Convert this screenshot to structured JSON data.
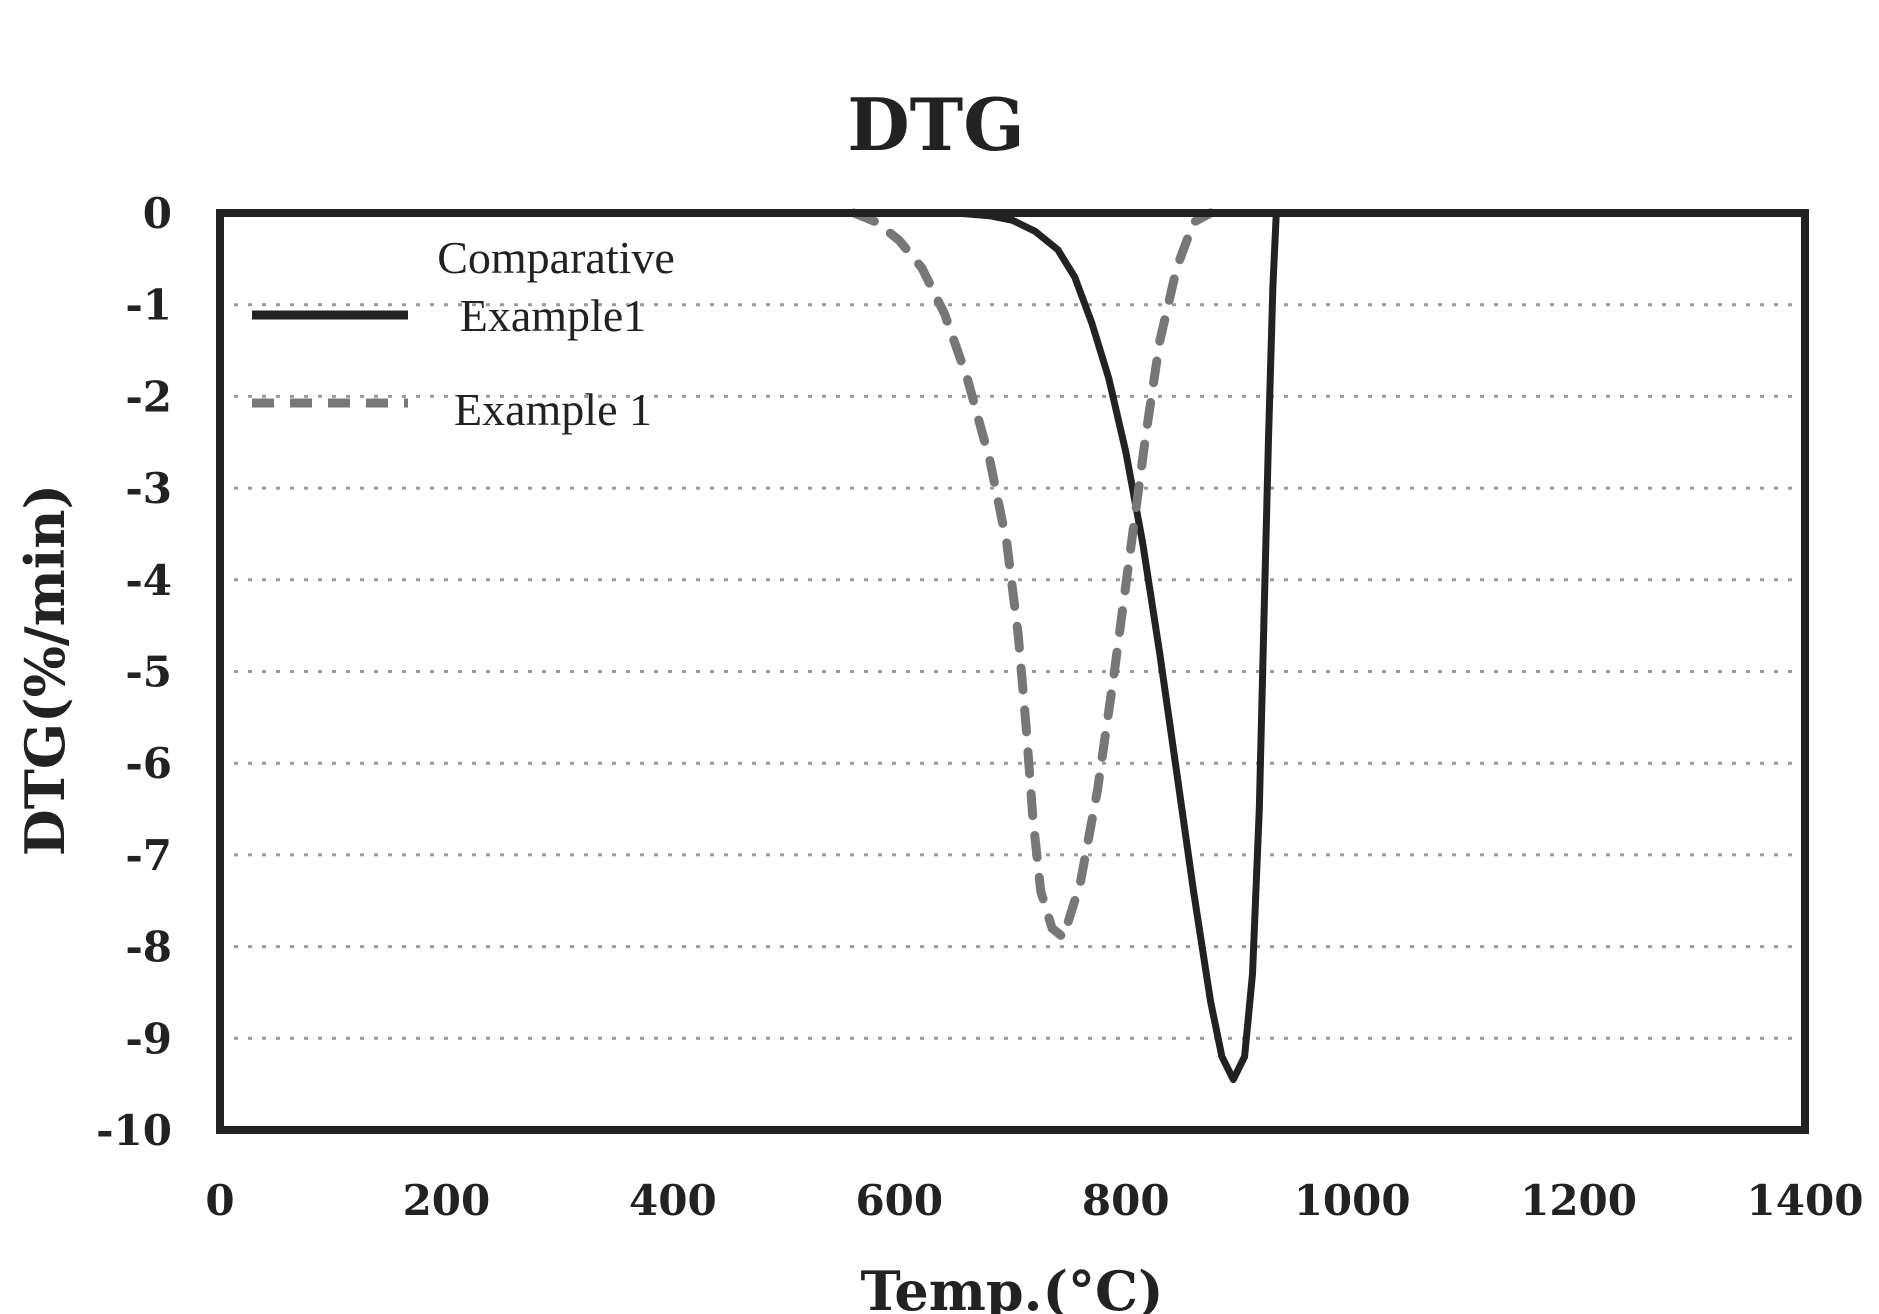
{
  "chart_data": {
    "type": "line",
    "title": "DTG",
    "xlabel": "Temp.(°C)",
    "ylabel": "DTG(%/min)",
    "xlim": [
      0,
      1400
    ],
    "ylim": [
      -10,
      0
    ],
    "xticks": [
      0,
      200,
      400,
      600,
      800,
      1000,
      1200,
      1400
    ],
    "yticks": [
      0,
      -1,
      -2,
      -3,
      -4,
      -5,
      -6,
      -7,
      -8,
      -9,
      -10
    ],
    "xtick_labels": [
      "0",
      "200",
      "400",
      "600",
      "800",
      "1000",
      "1200",
      "1400"
    ],
    "ytick_labels": [
      "0",
      "-1",
      "-2",
      "-3",
      "-4",
      "-5",
      "-6",
      "-7",
      "-8",
      "-9",
      "-10"
    ],
    "grid": "horizontal dotted",
    "legend": {
      "placement": "top-left",
      "entries": [
        {
          "lines": [
            "Comparative",
            "Example1"
          ],
          "style": "solid"
        },
        {
          "lines": [
            "Example 1"
          ],
          "style": "dashed"
        }
      ]
    },
    "series": [
      {
        "name": "Comparative Example1",
        "style": "solid",
        "color": "#222222",
        "points": [
          [
            0,
            0
          ],
          [
            600,
            0
          ],
          [
            650,
            0
          ],
          [
            680,
            -0.03
          ],
          [
            700,
            -0.08
          ],
          [
            720,
            -0.2
          ],
          [
            740,
            -0.4
          ],
          [
            755,
            -0.7
          ],
          [
            770,
            -1.2
          ],
          [
            785,
            -1.8
          ],
          [
            800,
            -2.6
          ],
          [
            815,
            -3.6
          ],
          [
            830,
            -4.8
          ],
          [
            845,
            -6.1
          ],
          [
            860,
            -7.4
          ],
          [
            875,
            -8.6
          ],
          [
            885,
            -9.2
          ],
          [
            895,
            -9.45
          ],
          [
            905,
            -9.2
          ],
          [
            912,
            -8.3
          ],
          [
            918,
            -6.5
          ],
          [
            922,
            -4.5
          ],
          [
            926,
            -2.5
          ],
          [
            930,
            -0.8
          ],
          [
            933,
            0
          ],
          [
            950,
            0
          ],
          [
            1400,
            0
          ]
        ]
      },
      {
        "name": "Example 1",
        "style": "dashed",
        "color": "#777777",
        "points": [
          [
            560,
            0
          ],
          [
            580,
            -0.1
          ],
          [
            600,
            -0.3
          ],
          [
            620,
            -0.6
          ],
          [
            640,
            -1.1
          ],
          [
            660,
            -1.8
          ],
          [
            680,
            -2.7
          ],
          [
            695,
            -3.6
          ],
          [
            705,
            -4.6
          ],
          [
            712,
            -5.6
          ],
          [
            718,
            -6.6
          ],
          [
            725,
            -7.4
          ],
          [
            735,
            -7.8
          ],
          [
            745,
            -7.9
          ],
          [
            760,
            -7.3
          ],
          [
            775,
            -6.3
          ],
          [
            790,
            -5.0
          ],
          [
            805,
            -3.6
          ],
          [
            818,
            -2.4
          ],
          [
            830,
            -1.4
          ],
          [
            845,
            -0.6
          ],
          [
            860,
            -0.1
          ],
          [
            875,
            0
          ]
        ]
      }
    ]
  }
}
